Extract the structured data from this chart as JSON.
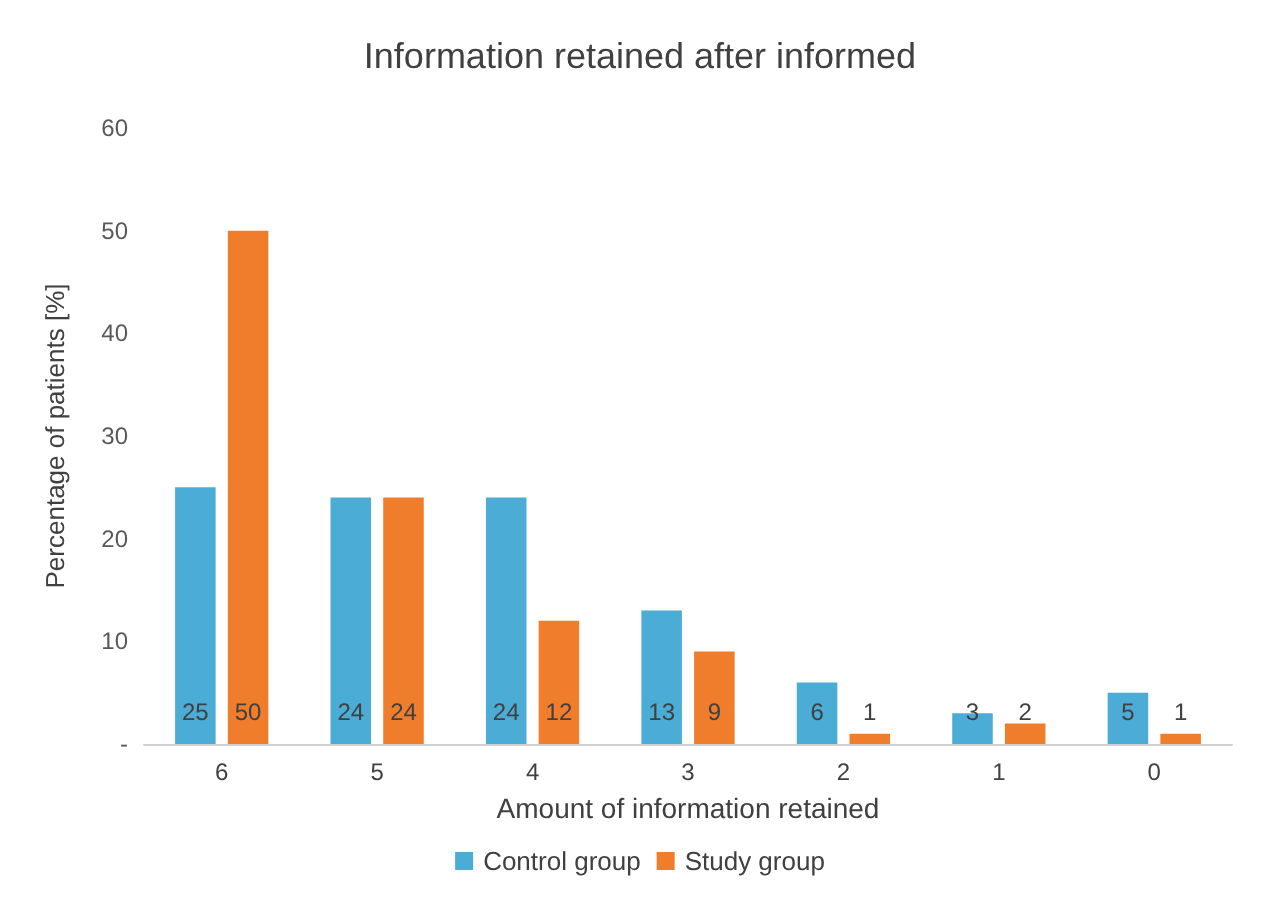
{
  "chart_data": {
    "type": "bar",
    "title": "Information retained after informed",
    "xlabel": "Amount of information retained",
    "ylabel": "Percentage of patients [%]",
    "categories": [
      "6",
      "5",
      "4",
      "3",
      "2",
      "1",
      "0"
    ],
    "series": [
      {
        "name": "Control group",
        "color": "#4bacd6",
        "values": [
          25,
          24,
          24,
          13,
          6,
          3,
          5
        ]
      },
      {
        "name": "Study group",
        "color": "#f07d2c",
        "values": [
          50,
          24,
          12,
          9,
          1,
          2,
          1
        ]
      }
    ],
    "ylim": [
      0,
      60
    ],
    "yticks": [
      {
        "value": 0,
        "label": "-"
      },
      10,
      20,
      30,
      40,
      50,
      60
    ],
    "grid": false,
    "legend": "bottom",
    "data_labels": true
  }
}
